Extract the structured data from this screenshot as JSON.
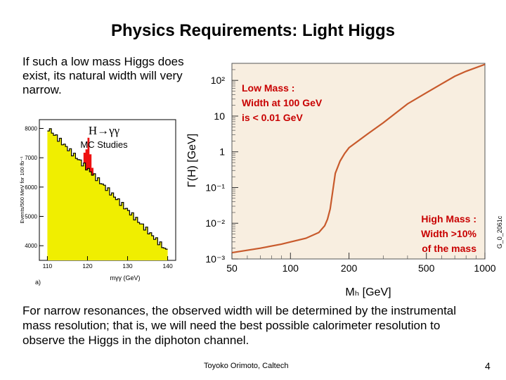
{
  "slide": {
    "title": "Physics Requirements: Light Higgs",
    "intro": "If such a low mass Higgs does exist, its natural width will very narrow.",
    "footer": "For narrow resonances, the observed width will be determined by the instrumental mass resolution; that is, we will need the best possible calorimeter resolution to observe the Higgs in the diphoton channel.",
    "credit": "Toyoko Orimoto, Caltech",
    "page_number": "4"
  },
  "left_plot": {
    "process_label": "H→γγ",
    "studies_label": "MC Studies",
    "ylabel": "Events/500 MeV for 100 fb⁻¹",
    "xlabel": "mγγ (GeV)",
    "panel_tag": "a)",
    "colors": {
      "fill": "#f0ee00",
      "signal": "#ee1111"
    },
    "y_ticks": [
      "8000",
      "7000",
      "6000",
      "5000",
      "4000"
    ],
    "x_ticks": [
      "110",
      "120",
      "130",
      "140"
    ]
  },
  "chart_data": {
    "type": "line",
    "xlabel": "Mₕ [GeV]",
    "ylabel": "Γ(H) [GeV]",
    "x_scale": "log",
    "y_scale": "log",
    "xlim": [
      50,
      1000
    ],
    "ylim": [
      0.001,
      300
    ],
    "x_ticks": [
      "50",
      "100",
      "200",
      "500",
      "1000"
    ],
    "y_ticks": [
      "10²",
      "10",
      "1",
      "10⁻¹",
      "10⁻²",
      "10⁻³"
    ],
    "series": [
      {
        "name": "",
        "x": [
          50,
          70,
          90,
          100,
          120,
          140,
          150,
          155,
          160,
          165,
          170,
          180,
          190,
          200,
          250,
          300,
          400,
          500,
          600,
          700,
          800,
          1000
        ],
        "y": [
          0.0015,
          0.002,
          0.0026,
          0.003,
          0.0038,
          0.0055,
          0.0085,
          0.013,
          0.025,
          0.08,
          0.25,
          0.55,
          0.9,
          1.3,
          3.2,
          6.5,
          22,
          45,
          80,
          130,
          180,
          280
        ]
      }
    ],
    "annotations": {
      "low_mass": [
        "Low Mass :",
        "Width at 100 GeV",
        "is  < 0.01 GeV"
      ],
      "high_mass": [
        "High Mass :",
        "Width >10%",
        "of the mass"
      ],
      "figure_id": "G_0_2061c"
    },
    "colors": {
      "curve": "#c85a2c",
      "background": "#f8eee0",
      "annotation": "#c80000"
    }
  }
}
